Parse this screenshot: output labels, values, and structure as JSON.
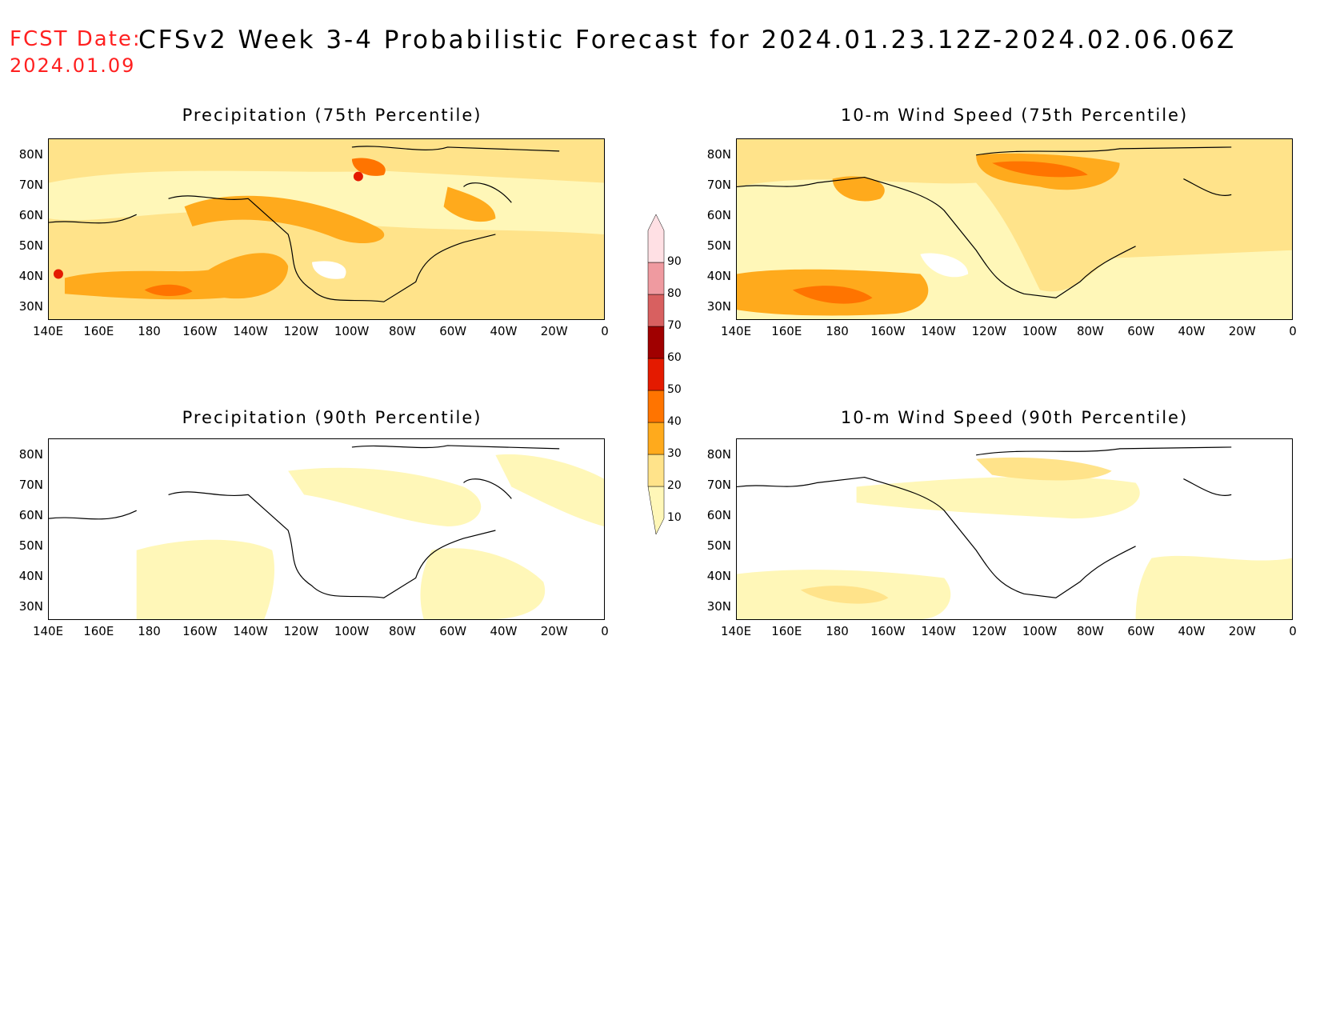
{
  "header": {
    "fcst_label": "FCST Date:",
    "fcst_date": "2024.01.09",
    "title": "CFSv2 Week 3-4 Probabilistic Forecast for 2024.01.23.12Z-2024.02.06.06Z"
  },
  "panels": [
    {
      "id": "precip75",
      "title": "Precipitation (75th Percentile)"
    },
    {
      "id": "wind75",
      "title": "10-m Wind Speed (75th Percentile)"
    },
    {
      "id": "precip90",
      "title": "Precipitation (90th Percentile)"
    },
    {
      "id": "wind90",
      "title": "10-m Wind Speed (90th Percentile)"
    }
  ],
  "lat_ticks": [
    "80N",
    "70N",
    "60N",
    "50N",
    "40N",
    "30N"
  ],
  "lon_ticks": [
    "140E",
    "160E",
    "180",
    "160W",
    "140W",
    "120W",
    "100W",
    "80W",
    "60W",
    "40W",
    "20W",
    "0"
  ],
  "colorbar": {
    "levels": [
      "10",
      "20",
      "30",
      "40",
      "50",
      "60",
      "70",
      "80",
      "90"
    ],
    "colors": [
      "#fff7b8",
      "#ffe38a",
      "#ffaa1c",
      "#ff7400",
      "#e41a00",
      "#a00000",
      "#d86060",
      "#ef9aa0",
      "#ffe0e4"
    ]
  }
}
